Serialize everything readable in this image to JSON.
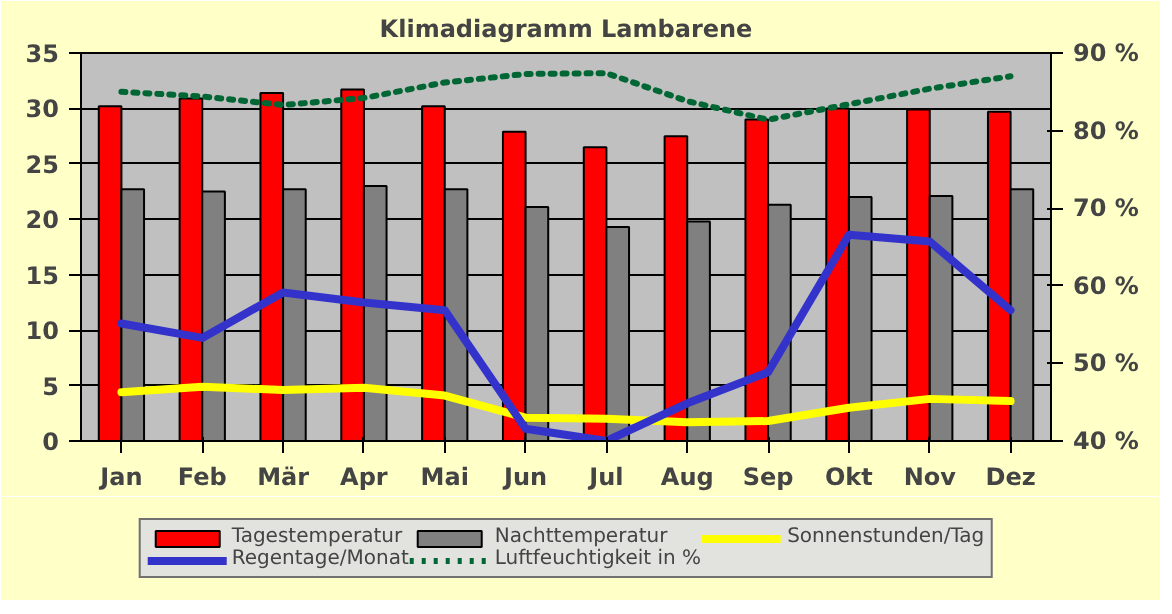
{
  "chart_data": {
    "type": "bar",
    "title": "Klimadiagramm Lambarene",
    "categories": [
      "Jan",
      "Feb",
      "Mär",
      "Apr",
      "Mai",
      "Jun",
      "Jul",
      "Aug",
      "Sep",
      "Okt",
      "Nov",
      "Dez"
    ],
    "series": [
      {
        "name": "Tagestemperatur",
        "color": "#ff0000",
        "values": [
          30.2,
          30.9,
          31.4,
          31.7,
          30.2,
          27.9,
          26.5,
          27.5,
          29.0,
          30.0,
          29.9,
          29.7
        ]
      },
      {
        "name": "Nachttemperatur",
        "color": "#808080",
        "values": [
          22.7,
          22.5,
          22.7,
          23.0,
          22.7,
          21.1,
          19.3,
          19.8,
          21.3,
          22.0,
          22.1,
          22.7
        ]
      },
      {
        "name": "Sonnenstunden/Tag",
        "type": "line",
        "color": "#ffff00",
        "line_style": "solid",
        "values": [
          4.4,
          4.9,
          4.6,
          4.8,
          4.1,
          2.1,
          2.0,
          1.7,
          1.8,
          3.0,
          3.8,
          3.6
        ]
      },
      {
        "name": "Regentage/Monat",
        "type": "line",
        "color": "#3333cc",
        "line_style": "solid",
        "values": [
          10.6,
          9.3,
          13.4,
          12.5,
          11.8,
          1.1,
          0.0,
          3.4,
          6.2,
          18.6,
          18.0,
          11.8
        ]
      },
      {
        "name": "Luftfeuchtigkeit in %",
        "type": "line",
        "color": "#006633",
        "line_style": "dotted",
        "axis": "y2",
        "values": [
          85,
          84.4,
          83.3,
          84.2,
          86.2,
          87.3,
          87.4,
          83.8,
          81.4,
          83.4,
          85.4,
          87.0
        ]
      }
    ],
    "ylim": [
      0,
      35
    ],
    "yticks": [
      0,
      5,
      10,
      15,
      20,
      25,
      30,
      35
    ],
    "y2lim": [
      40,
      90
    ],
    "y2ticks": [
      {
        "value": 40,
        "label": "40 %"
      },
      {
        "value": 50,
        "label": "50 %"
      },
      {
        "value": 60,
        "label": "60 %"
      },
      {
        "value": 70,
        "label": "70 %"
      },
      {
        "value": 80,
        "label": "80 %"
      },
      {
        "value": 90,
        "label": "90 %"
      }
    ],
    "grid": "y",
    "legend": "bottom"
  }
}
